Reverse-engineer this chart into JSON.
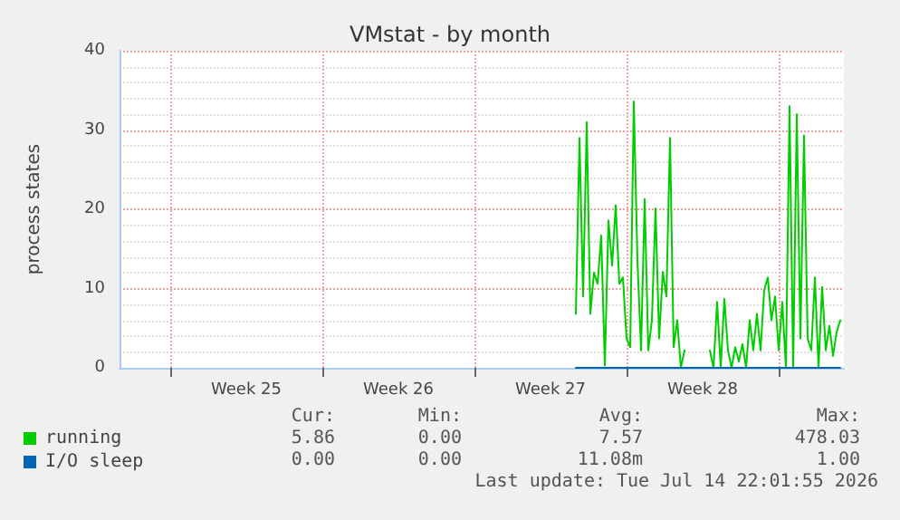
{
  "chart_data": {
    "type": "line",
    "title": "VMstat - by month",
    "ylabel": "process states",
    "categories": [
      null,
      null,
      null,
      null,
      null,
      null,
      null,
      null,
      null,
      null,
      null,
      null,
      null,
      null,
      null,
      null,
      null,
      null,
      null,
      null,
      null,
      null,
      null,
      null,
      null,
      null,
      null,
      null,
      null,
      null,
      null,
      null,
      null,
      null,
      null,
      "Week 25",
      null,
      null,
      null,
      null,
      null,
      null,
      null,
      null,
      null,
      null,
      null,
      null,
      null,
      null,
      null,
      null,
      null,
      null,
      null,
      null,
      null,
      null,
      null,
      null,
      null,
      null,
      null,
      null,
      null,
      null,
      null,
      null,
      null,
      null,
      null,
      null,
      null,
      null,
      null,
      null,
      null,
      "Week 26",
      null,
      null,
      null,
      null,
      null,
      null,
      null,
      null,
      null,
      null,
      null,
      null,
      null,
      null,
      null,
      null,
      null,
      null,
      null,
      null,
      null,
      null,
      null,
      null,
      null,
      null,
      null,
      null,
      null,
      null,
      null,
      null,
      null,
      null,
      null,
      null,
      null,
      null,
      null,
      null,
      null,
      "Week 27",
      null,
      null,
      null,
      null,
      null,
      null,
      null,
      null,
      null,
      null,
      null,
      null,
      null,
      null,
      null,
      null,
      null,
      null,
      null,
      null,
      null,
      null,
      null,
      null,
      null,
      null,
      null,
      null,
      null,
      null,
      null,
      null,
      null,
      null,
      null,
      null,
      null,
      null,
      null,
      null,
      null,
      "Week 28",
      null,
      null,
      null,
      null,
      null,
      null,
      null,
      null,
      null,
      null,
      null,
      null,
      null,
      null,
      null,
      null,
      null,
      null,
      null,
      null,
      null,
      null,
      null,
      null,
      null,
      null,
      null,
      null,
      null,
      null,
      null,
      null,
      null,
      null,
      null,
      null,
      null,
      null,
      null
    ],
    "ylim": [
      0,
      40
    ],
    "yticks": [
      0,
      10,
      20,
      30,
      40
    ],
    "grid": true,
    "legend": "bottom left",
    "marker": "none",
    "line_style": "solid",
    "series": [
      {
        "name": "running",
        "color": "#00cc00",
        "values": [
          null,
          null,
          null,
          null,
          null,
          null,
          null,
          null,
          null,
          null,
          null,
          null,
          null,
          null,
          null,
          null,
          null,
          null,
          null,
          null,
          null,
          null,
          null,
          null,
          null,
          null,
          null,
          null,
          null,
          null,
          null,
          null,
          null,
          null,
          null,
          null,
          null,
          null,
          null,
          null,
          null,
          null,
          null,
          null,
          null,
          null,
          null,
          null,
          null,
          null,
          null,
          null,
          null,
          null,
          null,
          null,
          null,
          null,
          null,
          null,
          null,
          null,
          null,
          null,
          null,
          null,
          null,
          null,
          null,
          null,
          null,
          null,
          null,
          null,
          null,
          null,
          null,
          null,
          null,
          null,
          null,
          null,
          null,
          null,
          null,
          null,
          null,
          null,
          null,
          null,
          null,
          null,
          null,
          null,
          null,
          null,
          null,
          null,
          null,
          null,
          null,
          null,
          null,
          null,
          null,
          null,
          null,
          null,
          null,
          null,
          null,
          null,
          null,
          null,
          null,
          null,
          null,
          null,
          null,
          null,
          null,
          null,
          null,
          null,
          null,
          null,
          6.8,
          29,
          9,
          31,
          6.8,
          12,
          10.6,
          16.7,
          0.3,
          18.6,
          12.9,
          20.5,
          10.6,
          11.4,
          3.7,
          2.6,
          33.6,
          13.6,
          2.2,
          21.3,
          2.2,
          6,
          20.1,
          3.7,
          12.1,
          9,
          29,
          2.6,
          6,
          0,
          2.2,
          null,
          null,
          null,
          null,
          null,
          null,
          2.2,
          0,
          8.3,
          0,
          8.7,
          2.2,
          0,
          2.6,
          0.8,
          3,
          0,
          6,
          2.2,
          6.8,
          2.2,
          9.8,
          11.4,
          6,
          9,
          2.2,
          8.3,
          0,
          33,
          0,
          32,
          3.7,
          29.3,
          3.7,
          2.2,
          11.4,
          0,
          10.2,
          2.2,
          5.3,
          1.5,
          4.5,
          6,
          null
        ]
      },
      {
        "name": "I/O sleep",
        "color": "#0066b3",
        "values": [
          null,
          null,
          null,
          null,
          null,
          null,
          null,
          null,
          null,
          null,
          null,
          null,
          null,
          null,
          null,
          null,
          null,
          null,
          null,
          null,
          null,
          null,
          null,
          null,
          null,
          null,
          null,
          null,
          null,
          null,
          null,
          null,
          null,
          null,
          null,
          null,
          null,
          null,
          null,
          null,
          null,
          null,
          null,
          null,
          null,
          null,
          null,
          null,
          null,
          null,
          null,
          null,
          null,
          null,
          null,
          null,
          null,
          null,
          null,
          null,
          null,
          null,
          null,
          null,
          null,
          null,
          null,
          null,
          null,
          null,
          null,
          null,
          null,
          null,
          null,
          null,
          null,
          null,
          null,
          null,
          null,
          null,
          null,
          null,
          null,
          null,
          null,
          null,
          null,
          null,
          null,
          null,
          null,
          null,
          null,
          null,
          null,
          null,
          null,
          null,
          null,
          null,
          null,
          null,
          null,
          null,
          null,
          null,
          null,
          null,
          null,
          null,
          null,
          null,
          null,
          null,
          null,
          null,
          null,
          null,
          null,
          null,
          null,
          null,
          null,
          null,
          0,
          0,
          0,
          0,
          0,
          0,
          0,
          0,
          0,
          0,
          0,
          0,
          0,
          0,
          0,
          0,
          0,
          0,
          0,
          0,
          0,
          0,
          0,
          0,
          0,
          0,
          0,
          0,
          0,
          0,
          0,
          0,
          0,
          0,
          0,
          0,
          0,
          0,
          0,
          0,
          0,
          0,
          0,
          0,
          0,
          0,
          0,
          0,
          0,
          0,
          0,
          0,
          0,
          0,
          0,
          0,
          0,
          0,
          0,
          0,
          0,
          0,
          0,
          0,
          0,
          0,
          0,
          0,
          0,
          0,
          0,
          0,
          0,
          0,
          null
        ]
      }
    ],
    "annotations": [
      "Cur:",
      "Min:",
      "Avg:",
      "Max:",
      "5.86",
      "0.00",
      "7.57",
      "478.03",
      "0.00",
      "0.00",
      "11.08m",
      "1.00",
      "Last update: Tue Jul 14 22:01:55 2026"
    ]
  }
}
